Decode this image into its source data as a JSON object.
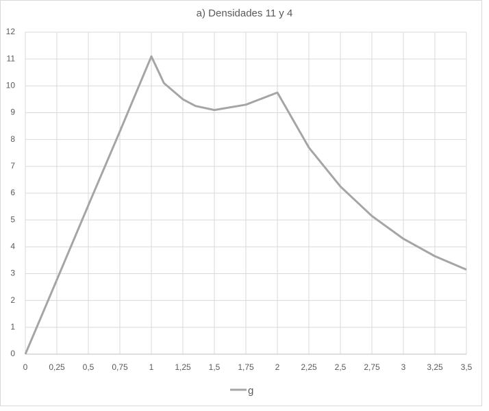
{
  "chart_data": {
    "type": "line",
    "title": "a) Densidades 11 y 4",
    "x": [
      0,
      0.25,
      0.5,
      0.75,
      1,
      1.05,
      1.1,
      1.25,
      1.35,
      1.5,
      1.75,
      2,
      2.25,
      2.5,
      2.75,
      3,
      3.25,
      3.5
    ],
    "series": [
      {
        "name": "g",
        "color": "#a5a5a5",
        "values": [
          0,
          2.77,
          5.55,
          8.3,
          11.1,
          10.6,
          10.1,
          9.5,
          9.25,
          9.1,
          9.3,
          9.75,
          7.7,
          6.25,
          5.15,
          4.3,
          3.65,
          3.15
        ]
      }
    ],
    "xlim": [
      0,
      3.5
    ],
    "xticks": [
      0,
      {
        "value": 0.25,
        "label": "0,25"
      },
      {
        "value": 0.5,
        "label": "0,5"
      },
      {
        "value": 0.75,
        "label": "0,75"
      },
      1,
      {
        "value": 1.25,
        "label": "1,25"
      },
      {
        "value": 1.5,
        "label": "1,5"
      },
      {
        "value": 1.75,
        "label": "1,75"
      },
      2,
      {
        "value": 2.25,
        "label": "2,25"
      },
      {
        "value": 2.5,
        "label": "2,5"
      },
      {
        "value": 2.75,
        "label": "2,75"
      },
      3,
      {
        "value": 3.25,
        "label": "3,25"
      },
      {
        "value": 3.5,
        "label": "3,5"
      }
    ],
    "ylim": [
      0,
      12
    ],
    "yticks": [
      0,
      1,
      2,
      3,
      4,
      5,
      6,
      7,
      8,
      9,
      10,
      11,
      12
    ],
    "grid": true,
    "legend": "bottom"
  }
}
